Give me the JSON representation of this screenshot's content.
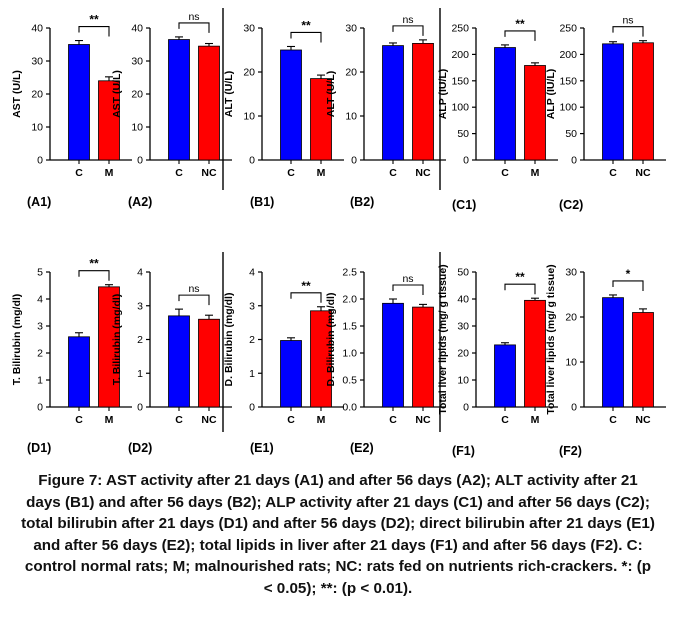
{
  "colors": {
    "C": "#0000ff",
    "M": "#ff0000",
    "NC": "#ff0000",
    "axis": "#000000"
  },
  "caption": "Figure 7: AST activity after 21 days (A1) and after 56 days (A2); ALT activity after 21 days (B1) and after 56 days (B2); ALP activity after 21 days (C1) and after 56 days (C2); total bilirubin after 21 days (D1) and after 56 days (D2); direct bilirubin after 21 days (E1) and after 56 days (E2); total lipids in liver after 21 days (F1) and after 56 days (F2). C: control normal rats; M; malnourished rats; NC: rats fed on nutrients rich-crackers. *: (p < 0.05); **: (p < 0.01).",
  "chart_data": [
    {
      "panel": "(A1)",
      "type": "bar",
      "ylabel": "AST (U/L)",
      "ylim": [
        0,
        40
      ],
      "yticks": [
        0,
        10,
        20,
        30,
        40
      ],
      "categories": [
        "C",
        "M"
      ],
      "values": [
        35,
        24
      ],
      "errors": [
        1.2,
        1.2
      ],
      "significance": "**"
    },
    {
      "panel": "(A2)",
      "type": "bar",
      "ylabel": "AST (U/L)",
      "ylim": [
        0,
        40
      ],
      "yticks": [
        0,
        10,
        20,
        30,
        40
      ],
      "categories": [
        "C",
        "NC"
      ],
      "values": [
        36.5,
        34.5
      ],
      "errors": [
        0.8,
        0.8
      ],
      "significance": "ns"
    },
    {
      "panel": "(B1)",
      "type": "bar",
      "ylabel": "ALT (U/L)",
      "ylim": [
        0,
        30
      ],
      "yticks": [
        0,
        10,
        20,
        30
      ],
      "categories": [
        "C",
        "M"
      ],
      "values": [
        25,
        18.5
      ],
      "errors": [
        0.8,
        0.8
      ],
      "significance": "**"
    },
    {
      "panel": "(B2)",
      "type": "bar",
      "ylabel": "ALT (U/L)",
      "ylim": [
        0,
        30
      ],
      "yticks": [
        0,
        10,
        20,
        30
      ],
      "categories": [
        "C",
        "NC"
      ],
      "values": [
        26,
        26.5
      ],
      "errors": [
        0.6,
        0.8
      ],
      "significance": "ns"
    },
    {
      "panel": "(C1)",
      "type": "bar",
      "ylabel": "ALP (IU/L)",
      "ylim": [
        0,
        250
      ],
      "yticks": [
        0,
        50,
        100,
        150,
        200,
        250
      ],
      "categories": [
        "C",
        "M"
      ],
      "values": [
        213,
        179
      ],
      "errors": [
        5,
        5
      ],
      "significance": "**"
    },
    {
      "panel": "(C2)",
      "type": "bar",
      "ylabel": "ALP (IU/L)",
      "ylim": [
        0,
        250
      ],
      "yticks": [
        0,
        50,
        100,
        150,
        200,
        250
      ],
      "categories": [
        "C",
        "NC"
      ],
      "values": [
        220,
        222
      ],
      "errors": [
        4,
        4
      ],
      "significance": "ns"
    },
    {
      "panel": "(D1)",
      "type": "bar",
      "ylabel": "T. Bilirubin (mg/dl)",
      "ylim": [
        0,
        5
      ],
      "yticks": [
        0,
        1,
        2,
        3,
        4,
        5
      ],
      "categories": [
        "C",
        "M"
      ],
      "values": [
        2.6,
        4.45
      ],
      "errors": [
        0.15,
        0.08
      ],
      "significance": "**"
    },
    {
      "panel": "(D2)",
      "type": "bar",
      "ylabel": "T. Bilirubin (mg/dl)",
      "ylim": [
        0,
        4
      ],
      "yticks": [
        0,
        1,
        2,
        3,
        4
      ],
      "categories": [
        "C",
        "NC"
      ],
      "values": [
        2.7,
        2.6
      ],
      "errors": [
        0.2,
        0.12
      ],
      "significance": "ns"
    },
    {
      "panel": "(E1)",
      "type": "bar",
      "ylabel": "D. Bilirubin (mg/dl)",
      "ylim": [
        0,
        4
      ],
      "yticks": [
        0,
        1,
        2,
        3,
        4
      ],
      "categories": [
        "C",
        "M"
      ],
      "values": [
        1.97,
        2.85
      ],
      "errors": [
        0.08,
        0.12
      ],
      "significance": "**"
    },
    {
      "panel": "(E2)",
      "type": "bar",
      "ylabel": "D. Bilirubin (mg/dl)",
      "ylim": [
        0,
        2.5
      ],
      "yticks": [
        0,
        0.5,
        1.0,
        1.5,
        2.0,
        2.5
      ],
      "yticklabels": [
        "0.0",
        "0.5",
        "1.0",
        "1.5",
        "2.0",
        "2.5"
      ],
      "categories": [
        "C",
        "NC"
      ],
      "values": [
        1.92,
        1.85
      ],
      "errors": [
        0.08,
        0.05
      ],
      "significance": "ns"
    },
    {
      "panel": "(F1)",
      "type": "bar",
      "ylabel": "Total liver lipids (mg/ g tissue)",
      "ylim": [
        0,
        50
      ],
      "yticks": [
        0,
        10,
        20,
        30,
        40,
        50
      ],
      "categories": [
        "C",
        "M"
      ],
      "values": [
        23,
        39.5
      ],
      "errors": [
        0.8,
        0.8
      ],
      "significance": "**"
    },
    {
      "panel": "(F2)",
      "type": "bar",
      "ylabel": "Total liver lipids (mg/ g tissue)",
      "ylim": [
        0,
        30
      ],
      "yticks": [
        0,
        10,
        20,
        30
      ],
      "categories": [
        "C",
        "NC"
      ],
      "values": [
        24.3,
        21
      ],
      "errors": [
        0.6,
        0.8
      ],
      "significance": "*"
    }
  ]
}
